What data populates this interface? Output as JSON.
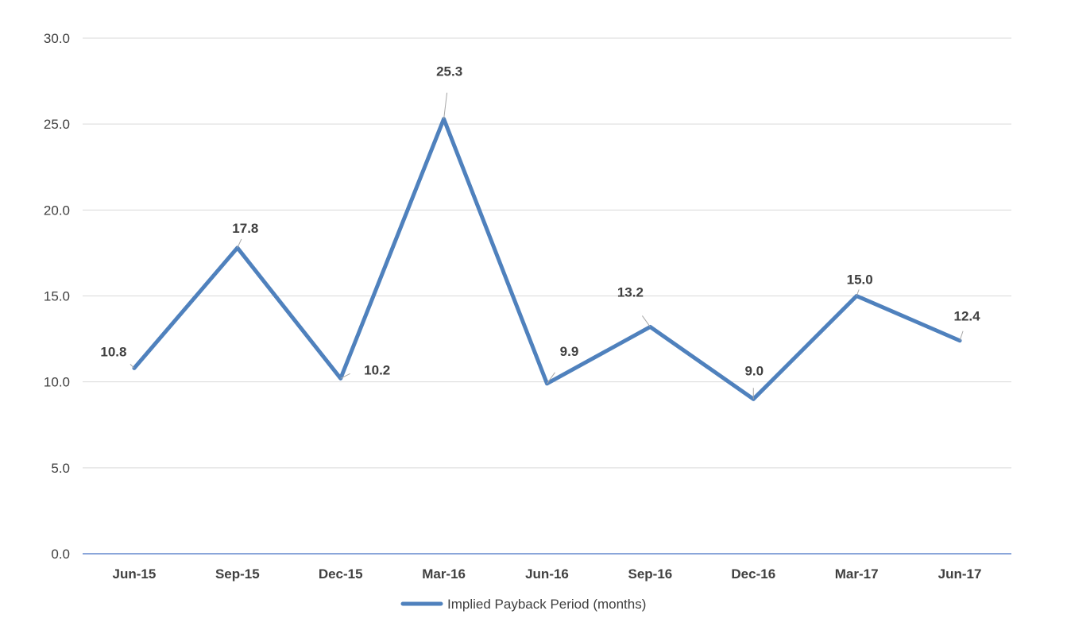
{
  "chart_data": {
    "type": "line",
    "categories": [
      "Jun-15",
      "Sep-15",
      "Dec-15",
      "Mar-16",
      "Jun-16",
      "Sep-16",
      "Dec-16",
      "Mar-17",
      "Jun-17"
    ],
    "series": [
      {
        "name": "Implied Payback Period (months)",
        "values": [
          10.8,
          17.8,
          10.2,
          25.3,
          9.9,
          13.2,
          9.0,
          15.0,
          12.4
        ],
        "labels": [
          "10.8",
          "17.8",
          "10.2",
          "25.3",
          "9.9",
          "13.2",
          "9.0",
          "15.0",
          "12.4"
        ],
        "color": "#4f81bd"
      }
    ],
    "yticks": [
      "0.0",
      "5.0",
      "10.0",
      "15.0",
      "20.0",
      "25.0",
      "30.0"
    ],
    "ylim": [
      0,
      30
    ],
    "grid": true,
    "gridColor": "#d9d9d9",
    "axisColor": "#4472c4",
    "legend": "bottom",
    "title": "",
    "xlabel": "",
    "ylabel": ""
  }
}
